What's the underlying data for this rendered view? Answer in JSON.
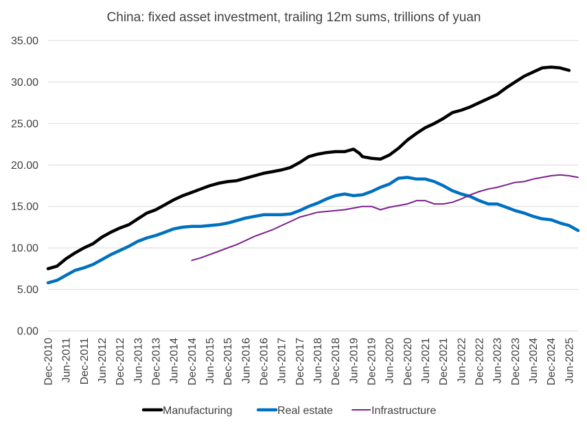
{
  "chart_data": {
    "type": "line",
    "title": "China: fixed asset investment, trailing 12m sums, trillions of yuan",
    "xlabel": "",
    "ylabel": "",
    "ylim": [
      0,
      35
    ],
    "yticks": [
      "0.00",
      "5.00",
      "10.00",
      "15.00",
      "20.00",
      "25.00",
      "30.00",
      "35.00"
    ],
    "grid": true,
    "legend_position": "bottom",
    "x_start": "Dec-2010",
    "x_end": "Sep-2025",
    "x_tick_labels": [
      "Dec-2010",
      "Jun-2011",
      "Dec-2011",
      "Jun-2012",
      "Dec-2012",
      "Jun-2013",
      "Dec-2013",
      "Jun-2014",
      "Dec-2014",
      "Jun-2015",
      "Dec-2015",
      "Jun-2016",
      "Dec-2016",
      "Jun-2017",
      "Dec-2017",
      "Jun-2018",
      "Dec-2018",
      "Jun-2019",
      "Dec-2019",
      "Jun-2020",
      "Dec-2020",
      "Jun-2021",
      "Dec-2021",
      "Jun-2022",
      "Dec-2022",
      "Jun-2023",
      "Dec-2023",
      "Jun-2024",
      "Dec-2024",
      "Jun-2025"
    ],
    "series": [
      {
        "name": "Manufacturing",
        "color": "#000000",
        "width": 4.5,
        "points": [
          [
            "Dec-2010",
            7.5
          ],
          [
            "Mar-2011",
            7.8
          ],
          [
            "Jun-2011",
            8.7
          ],
          [
            "Sep-2011",
            9.4
          ],
          [
            "Dec-2011",
            10.0
          ],
          [
            "Mar-2012",
            10.5
          ],
          [
            "Jun-2012",
            11.3
          ],
          [
            "Sep-2012",
            11.9
          ],
          [
            "Dec-2012",
            12.4
          ],
          [
            "Mar-2013",
            12.8
          ],
          [
            "Jun-2013",
            13.5
          ],
          [
            "Sep-2013",
            14.2
          ],
          [
            "Dec-2013",
            14.6
          ],
          [
            "Mar-2014",
            15.2
          ],
          [
            "Jun-2014",
            15.8
          ],
          [
            "Sep-2014",
            16.3
          ],
          [
            "Dec-2014",
            16.7
          ],
          [
            "Mar-2015",
            17.1
          ],
          [
            "Jun-2015",
            17.5
          ],
          [
            "Sep-2015",
            17.8
          ],
          [
            "Dec-2015",
            18.0
          ],
          [
            "Mar-2016",
            18.1
          ],
          [
            "Jun-2016",
            18.4
          ],
          [
            "Sep-2016",
            18.7
          ],
          [
            "Dec-2016",
            19.0
          ],
          [
            "Mar-2017",
            19.2
          ],
          [
            "Jun-2017",
            19.4
          ],
          [
            "Sep-2017",
            19.7
          ],
          [
            "Dec-2017",
            20.3
          ],
          [
            "Mar-2018",
            21.0
          ],
          [
            "Jun-2018",
            21.3
          ],
          [
            "Sep-2018",
            21.5
          ],
          [
            "Dec-2018",
            21.6
          ],
          [
            "Mar-2019",
            21.6
          ],
          [
            "Jun-2019",
            21.9
          ],
          [
            "Aug-2019",
            21.4
          ],
          [
            "Sep-2019",
            21.0
          ],
          [
            "Dec-2019",
            20.8
          ],
          [
            "Mar-2020",
            20.7
          ],
          [
            "Jun-2020",
            21.2
          ],
          [
            "Sep-2020",
            22.0
          ],
          [
            "Dec-2020",
            23.0
          ],
          [
            "Mar-2021",
            23.8
          ],
          [
            "Jun-2021",
            24.5
          ],
          [
            "Sep-2021",
            25.0
          ],
          [
            "Dec-2021",
            25.6
          ],
          [
            "Mar-2022",
            26.3
          ],
          [
            "Jun-2022",
            26.6
          ],
          [
            "Sep-2022",
            27.0
          ],
          [
            "Dec-2022",
            27.5
          ],
          [
            "Mar-2023",
            28.0
          ],
          [
            "Jun-2023",
            28.5
          ],
          [
            "Sep-2023",
            29.3
          ],
          [
            "Dec-2023",
            30.0
          ],
          [
            "Mar-2024",
            30.7
          ],
          [
            "Jun-2024",
            31.2
          ],
          [
            "Sep-2024",
            31.7
          ],
          [
            "Dec-2024",
            31.8
          ],
          [
            "Mar-2025",
            31.7
          ],
          [
            "Jun-2025",
            31.4
          ]
        ]
      },
      {
        "name": "Real estate",
        "color": "#0070c0",
        "width": 4.5,
        "points": [
          [
            "Dec-2010",
            5.8
          ],
          [
            "Mar-2011",
            6.1
          ],
          [
            "Jun-2011",
            6.7
          ],
          [
            "Sep-2011",
            7.3
          ],
          [
            "Dec-2011",
            7.6
          ],
          [
            "Mar-2012",
            8.0
          ],
          [
            "Jun-2012",
            8.6
          ],
          [
            "Sep-2012",
            9.2
          ],
          [
            "Dec-2012",
            9.7
          ],
          [
            "Mar-2013",
            10.2
          ],
          [
            "Jun-2013",
            10.8
          ],
          [
            "Sep-2013",
            11.2
          ],
          [
            "Dec-2013",
            11.5
          ],
          [
            "Mar-2014",
            11.9
          ],
          [
            "Jun-2014",
            12.3
          ],
          [
            "Sep-2014",
            12.5
          ],
          [
            "Dec-2014",
            12.6
          ],
          [
            "Mar-2015",
            12.6
          ],
          [
            "Jun-2015",
            12.7
          ],
          [
            "Sep-2015",
            12.8
          ],
          [
            "Dec-2015",
            13.0
          ],
          [
            "Mar-2016",
            13.3
          ],
          [
            "Jun-2016",
            13.6
          ],
          [
            "Sep-2016",
            13.8
          ],
          [
            "Dec-2016",
            14.0
          ],
          [
            "Mar-2017",
            14.0
          ],
          [
            "Jun-2017",
            14.0
          ],
          [
            "Sep-2017",
            14.1
          ],
          [
            "Dec-2017",
            14.5
          ],
          [
            "Mar-2018",
            15.0
          ],
          [
            "Jun-2018",
            15.4
          ],
          [
            "Sep-2018",
            15.9
          ],
          [
            "Dec-2018",
            16.3
          ],
          [
            "Mar-2019",
            16.5
          ],
          [
            "Jun-2019",
            16.3
          ],
          [
            "Sep-2019",
            16.4
          ],
          [
            "Dec-2019",
            16.8
          ],
          [
            "Mar-2020",
            17.3
          ],
          [
            "Jun-2020",
            17.7
          ],
          [
            "Sep-2020",
            18.4
          ],
          [
            "Dec-2020",
            18.5
          ],
          [
            "Mar-2021",
            18.3
          ],
          [
            "Jun-2021",
            18.3
          ],
          [
            "Sep-2021",
            18.0
          ],
          [
            "Dec-2021",
            17.5
          ],
          [
            "Mar-2022",
            16.9
          ],
          [
            "Jun-2022",
            16.5
          ],
          [
            "Sep-2022",
            16.2
          ],
          [
            "Dec-2022",
            15.7
          ],
          [
            "Mar-2023",
            15.3
          ],
          [
            "Jun-2023",
            15.3
          ],
          [
            "Sep-2023",
            14.9
          ],
          [
            "Dec-2023",
            14.5
          ],
          [
            "Mar-2024",
            14.2
          ],
          [
            "Jun-2024",
            13.8
          ],
          [
            "Sep-2024",
            13.5
          ],
          [
            "Dec-2024",
            13.4
          ],
          [
            "Mar-2025",
            13.0
          ],
          [
            "Jun-2025",
            12.7
          ],
          [
            "Sep-2025",
            12.1
          ]
        ]
      },
      {
        "name": "Infrastructure",
        "color": "#7b1f8c",
        "width": 2,
        "points": [
          [
            "Dec-2014",
            8.5
          ],
          [
            "Mar-2015",
            8.8
          ],
          [
            "Jun-2015",
            9.2
          ],
          [
            "Sep-2015",
            9.6
          ],
          [
            "Dec-2015",
            10.0
          ],
          [
            "Mar-2016",
            10.4
          ],
          [
            "Jun-2016",
            10.9
          ],
          [
            "Sep-2016",
            11.4
          ],
          [
            "Dec-2016",
            11.8
          ],
          [
            "Mar-2017",
            12.2
          ],
          [
            "Jun-2017",
            12.7
          ],
          [
            "Sep-2017",
            13.2
          ],
          [
            "Dec-2017",
            13.7
          ],
          [
            "Mar-2018",
            14.0
          ],
          [
            "Jun-2018",
            14.3
          ],
          [
            "Sep-2018",
            14.4
          ],
          [
            "Dec-2018",
            14.5
          ],
          [
            "Mar-2019",
            14.6
          ],
          [
            "Jun-2019",
            14.8
          ],
          [
            "Sep-2019",
            15.0
          ],
          [
            "Dec-2019",
            15.0
          ],
          [
            "Mar-2020",
            14.6
          ],
          [
            "Jun-2020",
            14.9
          ],
          [
            "Sep-2020",
            15.1
          ],
          [
            "Dec-2020",
            15.3
          ],
          [
            "Mar-2021",
            15.7
          ],
          [
            "Jun-2021",
            15.7
          ],
          [
            "Sep-2021",
            15.3
          ],
          [
            "Dec-2021",
            15.3
          ],
          [
            "Mar-2022",
            15.5
          ],
          [
            "Jun-2022",
            15.9
          ],
          [
            "Sep-2022",
            16.4
          ],
          [
            "Dec-2022",
            16.8
          ],
          [
            "Mar-2023",
            17.1
          ],
          [
            "Jun-2023",
            17.3
          ],
          [
            "Sep-2023",
            17.6
          ],
          [
            "Dec-2023",
            17.9
          ],
          [
            "Mar-2024",
            18.0
          ],
          [
            "Jun-2024",
            18.3
          ],
          [
            "Sep-2024",
            18.5
          ],
          [
            "Dec-2024",
            18.7
          ],
          [
            "Mar-2025",
            18.8
          ],
          [
            "Jun-2025",
            18.7
          ],
          [
            "Sep-2025",
            18.5
          ]
        ]
      }
    ]
  }
}
